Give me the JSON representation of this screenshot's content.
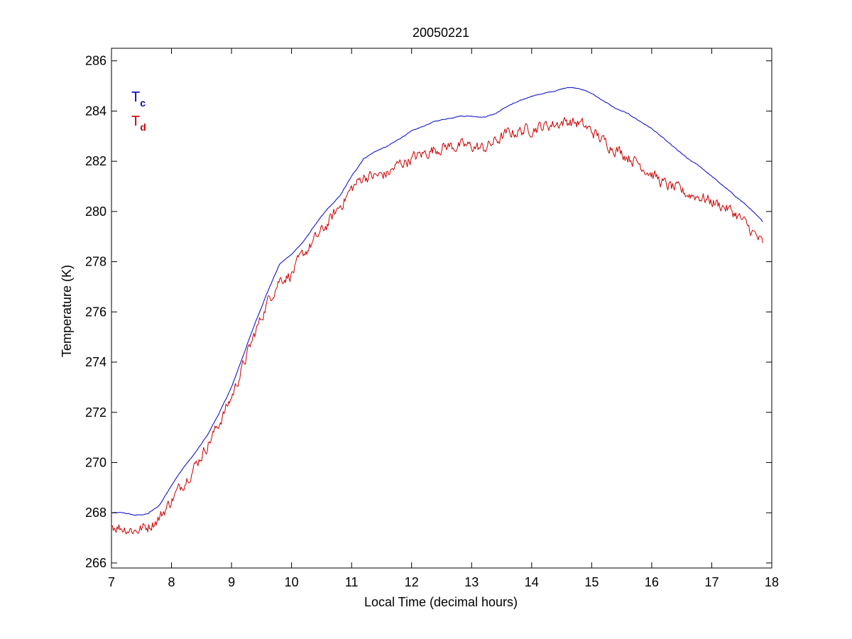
{
  "chart_data": {
    "type": "line",
    "title": "20050221",
    "xlabel": "Local Time (decimal hours)",
    "ylabel": "Temperature (K)",
    "xlim": [
      7,
      18
    ],
    "ylim": [
      265.8,
      286.5
    ],
    "xticks": [
      7,
      8,
      9,
      10,
      11,
      12,
      13,
      14,
      15,
      16,
      17,
      18
    ],
    "yticks": [
      266,
      268,
      270,
      272,
      274,
      276,
      278,
      280,
      282,
      284,
      286
    ],
    "grid": false,
    "legend_position": "top-left",
    "series": [
      {
        "name": "T",
        "subscript": "c",
        "color": "#0000cc",
        "noise": 0.03,
        "x": [
          7.0,
          7.2,
          7.4,
          7.6,
          7.8,
          8.0,
          8.2,
          8.4,
          8.6,
          8.8,
          9.0,
          9.2,
          9.4,
          9.6,
          9.8,
          10.0,
          10.2,
          10.4,
          10.6,
          10.8,
          11.0,
          11.2,
          11.4,
          11.6,
          11.8,
          12.0,
          12.2,
          12.4,
          12.6,
          12.8,
          13.0,
          13.2,
          13.4,
          13.6,
          13.8,
          14.0,
          14.2,
          14.4,
          14.6,
          14.8,
          15.0,
          15.2,
          15.4,
          15.6,
          15.8,
          16.0,
          16.2,
          16.4,
          16.6,
          16.8,
          17.0,
          17.2,
          17.4,
          17.6,
          17.85
        ],
        "y": [
          268.0,
          268.0,
          267.9,
          267.95,
          268.3,
          269.1,
          269.8,
          270.4,
          271.1,
          272.0,
          273.0,
          274.3,
          275.6,
          276.8,
          277.9,
          278.3,
          278.8,
          279.5,
          280.1,
          280.6,
          281.4,
          282.1,
          282.4,
          282.6,
          282.9,
          283.2,
          283.4,
          283.6,
          283.7,
          283.8,
          283.8,
          283.75,
          283.9,
          284.2,
          284.4,
          284.6,
          284.7,
          284.8,
          284.95,
          284.9,
          284.7,
          284.4,
          284.1,
          283.9,
          283.6,
          283.3,
          282.9,
          282.5,
          282.1,
          281.8,
          281.4,
          281.0,
          280.6,
          280.2,
          279.6
        ]
      },
      {
        "name": "T",
        "subscript": "d",
        "color": "#cc0000",
        "noise": 0.45,
        "x": [
          7.0,
          7.2,
          7.4,
          7.6,
          7.8,
          8.0,
          8.2,
          8.4,
          8.6,
          8.8,
          9.0,
          9.2,
          9.4,
          9.6,
          9.8,
          10.0,
          10.2,
          10.4,
          10.6,
          10.8,
          11.0,
          11.2,
          11.4,
          11.6,
          11.8,
          12.0,
          12.2,
          12.4,
          12.6,
          12.8,
          13.0,
          13.2,
          13.4,
          13.6,
          13.8,
          14.0,
          14.2,
          14.4,
          14.6,
          14.8,
          15.0,
          15.2,
          15.4,
          15.6,
          15.8,
          16.0,
          16.2,
          16.4,
          16.6,
          16.8,
          17.0,
          17.2,
          17.4,
          17.6,
          17.85
        ],
        "y": [
          267.5,
          267.4,
          267.3,
          267.45,
          267.8,
          268.5,
          269.2,
          269.9,
          270.7,
          271.6,
          272.6,
          273.9,
          275.2,
          276.4,
          277.3,
          277.5,
          278.3,
          278.9,
          279.5,
          280.2,
          280.9,
          281.4,
          281.4,
          281.5,
          281.9,
          282.1,
          282.3,
          282.5,
          282.6,
          282.6,
          282.6,
          282.5,
          282.8,
          283.1,
          283.2,
          283.3,
          283.4,
          283.5,
          283.6,
          283.5,
          283.2,
          282.8,
          282.5,
          282.2,
          281.9,
          281.5,
          281.1,
          280.9,
          280.7,
          280.6,
          280.4,
          280.2,
          279.9,
          279.4,
          278.7
        ]
      }
    ]
  }
}
